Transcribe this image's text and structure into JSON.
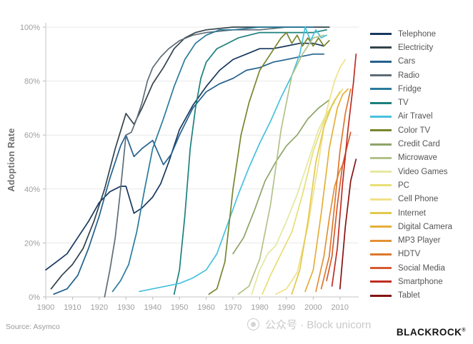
{
  "page": {
    "source": "Source: Asymco",
    "watermark": "公众号 · Block unicorn",
    "brand": "BLACKROCK",
    "brand_reg": "®"
  },
  "chart_data": {
    "type": "line",
    "title": "",
    "xlabel": "",
    "ylabel": "Adoption Rate",
    "xlim": [
      1900,
      2017
    ],
    "ylim": [
      0,
      100
    ],
    "x_ticks": [
      1900,
      1910,
      1920,
      1930,
      1940,
      1950,
      1960,
      1970,
      1980,
      1990,
      2000,
      2010
    ],
    "y_ticks": [
      0,
      20,
      40,
      60,
      80,
      100
    ],
    "y_tick_format": "percent",
    "grid": "horizontal",
    "legend_position": "right",
    "series": [
      {
        "name": "Telephone",
        "color": "#17375e",
        "points": [
          [
            1900,
            10
          ],
          [
            1904,
            13
          ],
          [
            1908,
            16
          ],
          [
            1912,
            22
          ],
          [
            1916,
            28
          ],
          [
            1920,
            35
          ],
          [
            1924,
            39
          ],
          [
            1928,
            41
          ],
          [
            1930,
            41
          ],
          [
            1933,
            31
          ],
          [
            1936,
            33
          ],
          [
            1940,
            37
          ],
          [
            1943,
            42
          ],
          [
            1946,
            50
          ],
          [
            1950,
            62
          ],
          [
            1955,
            71
          ],
          [
            1960,
            78
          ],
          [
            1965,
            84
          ],
          [
            1970,
            88
          ],
          [
            1975,
            90
          ],
          [
            1980,
            92
          ],
          [
            1985,
            92
          ],
          [
            1990,
            93
          ],
          [
            1995,
            94
          ],
          [
            2000,
            94
          ],
          [
            2004,
            93
          ]
        ]
      },
      {
        "name": "Electricity",
        "color": "#33434d",
        "points": [
          [
            1902,
            3
          ],
          [
            1906,
            8
          ],
          [
            1910,
            12
          ],
          [
            1914,
            18
          ],
          [
            1918,
            28
          ],
          [
            1922,
            40
          ],
          [
            1926,
            55
          ],
          [
            1930,
            68
          ],
          [
            1933,
            64
          ],
          [
            1936,
            70
          ],
          [
            1940,
            79
          ],
          [
            1944,
            85
          ],
          [
            1948,
            92
          ],
          [
            1952,
            96
          ],
          [
            1956,
            98
          ],
          [
            1960,
            99
          ],
          [
            1970,
            100
          ],
          [
            1980,
            100
          ],
          [
            1990,
            100
          ],
          [
            2000,
            100
          ],
          [
            2006,
            100
          ]
        ]
      },
      {
        "name": "Cars",
        "color": "#23618e",
        "points": [
          [
            1903,
            1
          ],
          [
            1908,
            3
          ],
          [
            1912,
            8
          ],
          [
            1916,
            18
          ],
          [
            1920,
            30
          ],
          [
            1924,
            44
          ],
          [
            1928,
            56
          ],
          [
            1930,
            60
          ],
          [
            1933,
            52
          ],
          [
            1936,
            55
          ],
          [
            1940,
            58
          ],
          [
            1944,
            49
          ],
          [
            1947,
            53
          ],
          [
            1950,
            60
          ],
          [
            1955,
            70
          ],
          [
            1960,
            76
          ],
          [
            1965,
            79
          ],
          [
            1970,
            81
          ],
          [
            1975,
            84
          ],
          [
            1980,
            85
          ],
          [
            1985,
            87
          ],
          [
            1990,
            88
          ],
          [
            1995,
            89
          ],
          [
            2000,
            90
          ],
          [
            2004,
            90
          ]
        ]
      },
      {
        "name": "Radio",
        "color": "#5d6d77",
        "points": [
          [
            1922,
            0
          ],
          [
            1924,
            10
          ],
          [
            1926,
            22
          ],
          [
            1928,
            40
          ],
          [
            1930,
            60
          ],
          [
            1932,
            61
          ],
          [
            1934,
            66
          ],
          [
            1936,
            72
          ],
          [
            1938,
            80
          ],
          [
            1940,
            85
          ],
          [
            1943,
            89
          ],
          [
            1946,
            92
          ],
          [
            1950,
            95
          ],
          [
            1955,
            97
          ],
          [
            1960,
            98
          ],
          [
            1970,
            99
          ],
          [
            1980,
            99
          ],
          [
            1990,
            100
          ],
          [
            2000,
            100
          ]
        ]
      },
      {
        "name": "Fridge",
        "color": "#2a7b9b",
        "points": [
          [
            1925,
            2
          ],
          [
            1928,
            6
          ],
          [
            1931,
            12
          ],
          [
            1934,
            24
          ],
          [
            1937,
            40
          ],
          [
            1940,
            55
          ],
          [
            1944,
            66
          ],
          [
            1948,
            78
          ],
          [
            1952,
            88
          ],
          [
            1956,
            94
          ],
          [
            1960,
            97
          ],
          [
            1965,
            99
          ],
          [
            1970,
            99
          ],
          [
            1980,
            100
          ],
          [
            1990,
            100
          ],
          [
            2000,
            100
          ]
        ]
      },
      {
        "name": "TV",
        "color": "#1b807c",
        "points": [
          [
            1948,
            1
          ],
          [
            1950,
            10
          ],
          [
            1952,
            30
          ],
          [
            1954,
            55
          ],
          [
            1956,
            70
          ],
          [
            1958,
            81
          ],
          [
            1960,
            87
          ],
          [
            1964,
            92
          ],
          [
            1968,
            94
          ],
          [
            1972,
            96
          ],
          [
            1976,
            97
          ],
          [
            1980,
            98
          ],
          [
            1990,
            98
          ],
          [
            2000,
            98
          ],
          [
            2005,
            99
          ]
        ]
      },
      {
        "name": "Air Travel",
        "color": "#46c1dc",
        "points": [
          [
            1935,
            2
          ],
          [
            1940,
            3
          ],
          [
            1945,
            4
          ],
          [
            1950,
            5
          ],
          [
            1955,
            7
          ],
          [
            1960,
            10
          ],
          [
            1964,
            16
          ],
          [
            1968,
            27
          ],
          [
            1972,
            38
          ],
          [
            1976,
            48
          ],
          [
            1980,
            57
          ],
          [
            1984,
            65
          ],
          [
            1988,
            74
          ],
          [
            1992,
            82
          ],
          [
            1995,
            90
          ],
          [
            1997,
            100
          ],
          [
            1999,
            95
          ],
          [
            2001,
            99
          ],
          [
            2003,
            96
          ],
          [
            2005,
            97
          ]
        ]
      },
      {
        "name": "Color TV",
        "color": "#77862f",
        "points": [
          [
            1961,
            1
          ],
          [
            1964,
            3
          ],
          [
            1967,
            13
          ],
          [
            1970,
            40
          ],
          [
            1973,
            60
          ],
          [
            1976,
            72
          ],
          [
            1980,
            84
          ],
          [
            1984,
            90
          ],
          [
            1988,
            96
          ],
          [
            1990,
            98
          ],
          [
            1992,
            94
          ],
          [
            1994,
            97
          ],
          [
            1996,
            93
          ],
          [
            1998,
            96
          ],
          [
            2000,
            93
          ],
          [
            2002,
            96
          ],
          [
            2004,
            93
          ],
          [
            2006,
            95
          ]
        ]
      },
      {
        "name": "Credit Card",
        "color": "#8fa368",
        "points": [
          [
            1970,
            16
          ],
          [
            1974,
            22
          ],
          [
            1978,
            32
          ],
          [
            1982,
            43
          ],
          [
            1986,
            50
          ],
          [
            1990,
            56
          ],
          [
            1994,
            60
          ],
          [
            1998,
            66
          ],
          [
            2002,
            70
          ],
          [
            2006,
            73
          ]
        ]
      },
      {
        "name": "Microwave",
        "color": "#b2c287",
        "points": [
          [
            1972,
            1
          ],
          [
            1976,
            4
          ],
          [
            1980,
            14
          ],
          [
            1984,
            34
          ],
          [
            1988,
            62
          ],
          [
            1992,
            82
          ],
          [
            1996,
            90
          ],
          [
            2000,
            96
          ],
          [
            2004,
            97
          ]
        ]
      },
      {
        "name": "Video Games",
        "color": "#e4e8a0",
        "points": [
          [
            1977,
            1
          ],
          [
            1980,
            10
          ],
          [
            1983,
            16
          ],
          [
            1986,
            19
          ],
          [
            1990,
            28
          ],
          [
            1994,
            38
          ],
          [
            1998,
            50
          ],
          [
            2002,
            62
          ],
          [
            2005,
            68
          ],
          [
            2008,
            72
          ]
        ]
      },
      {
        "name": "PC",
        "color": "#e9de74",
        "points": [
          [
            1981,
            1
          ],
          [
            1984,
            8
          ],
          [
            1988,
            16
          ],
          [
            1992,
            24
          ],
          [
            1996,
            38
          ],
          [
            2000,
            54
          ],
          [
            2004,
            65
          ],
          [
            2008,
            73
          ],
          [
            2011,
            77
          ]
        ]
      },
      {
        "name": "Cell Phone",
        "color": "#f0e18b",
        "points": [
          [
            1986,
            1
          ],
          [
            1990,
            3
          ],
          [
            1994,
            9
          ],
          [
            1998,
            26
          ],
          [
            2002,
            50
          ],
          [
            2005,
            69
          ],
          [
            2008,
            80
          ],
          [
            2010,
            85
          ],
          [
            2012,
            88
          ]
        ]
      },
      {
        "name": "Internet",
        "color": "#e2c94d",
        "points": [
          [
            1992,
            1
          ],
          [
            1995,
            10
          ],
          [
            1998,
            28
          ],
          [
            2001,
            50
          ],
          [
            2004,
            63
          ],
          [
            2007,
            71
          ],
          [
            2010,
            76
          ]
        ]
      },
      {
        "name": "Digital Camera",
        "color": "#e4af38",
        "points": [
          [
            1997,
            2
          ],
          [
            2000,
            10
          ],
          [
            2003,
            31
          ],
          [
            2006,
            55
          ],
          [
            2009,
            70
          ],
          [
            2011,
            75
          ],
          [
            2013,
            77
          ]
        ]
      },
      {
        "name": "MP3 Player",
        "color": "#e39136",
        "points": [
          [
            2001,
            2
          ],
          [
            2004,
            15
          ],
          [
            2006,
            29
          ],
          [
            2008,
            41
          ],
          [
            2010,
            47
          ],
          [
            2012,
            51
          ]
        ]
      },
      {
        "name": "HDTV",
        "color": "#dd772c",
        "points": [
          [
            2003,
            3
          ],
          [
            2006,
            15
          ],
          [
            2008,
            34
          ],
          [
            2010,
            54
          ],
          [
            2012,
            68
          ],
          [
            2014,
            77
          ]
        ]
      },
      {
        "name": "Social Media",
        "color": "#d45b2f",
        "points": [
          [
            2005,
            6
          ],
          [
            2007,
            15
          ],
          [
            2009,
            34
          ],
          [
            2011,
            49
          ],
          [
            2013,
            57
          ],
          [
            2014,
            61
          ]
        ]
      },
      {
        "name": "Smartphone",
        "color": "#bf2c23",
        "points": [
          [
            2007,
            4
          ],
          [
            2009,
            18
          ],
          [
            2011,
            42
          ],
          [
            2013,
            62
          ],
          [
            2015,
            79
          ],
          [
            2016,
            90
          ]
        ]
      },
      {
        "name": "Tablet",
        "color": "#871212",
        "points": [
          [
            2010,
            3
          ],
          [
            2012,
            26
          ],
          [
            2014,
            43
          ],
          [
            2016,
            51
          ]
        ]
      }
    ]
  }
}
